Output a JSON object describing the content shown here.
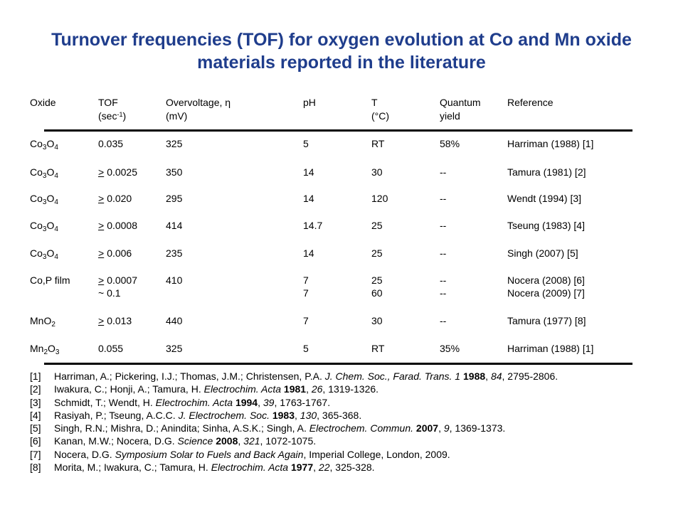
{
  "title": {
    "line1": "Turnover frequencies (TOF) for oxygen evolution at Co and Mn oxide",
    "line2": "materials reported in the literature"
  },
  "table": {
    "headers": {
      "oxide": "Oxide",
      "tof1": "TOF",
      "tof2_pre": "(sec",
      "tof2_sup": "-1",
      "tof2_post": ")",
      "over1": "Overvoltage, η",
      "over2": "(mV)",
      "ph": "pH",
      "t1": "T",
      "t2": "(°C)",
      "qy1": "Quantum",
      "qy2": "yield",
      "ref": "Reference"
    },
    "rows": [
      {
        "ox_a": "Co",
        "ox_s1": "3",
        "ox_b": "O",
        "ox_s2": "4",
        "ge": "",
        "tof": "0.035",
        "over": "325",
        "ph": "5",
        "t": "RT",
        "qy": "58%",
        "ref": "Harriman (1988) [1]"
      },
      {
        "ox_a": "Co",
        "ox_s1": "3",
        "ox_b": "O",
        "ox_s2": "4",
        "ge": ">",
        "tof": "0.0025",
        "over": "350",
        "ph": "14",
        "t": "30",
        "qy": "--",
        "ref": "Tamura (1981) [2]"
      },
      {
        "ox_a": "Co",
        "ox_s1": "3",
        "ox_b": "O",
        "ox_s2": "4",
        "ge": ">",
        "tof": "0.020",
        "over": "295",
        "ph": "14",
        "t": "120",
        "qy": "--",
        "ref": "Wendt (1994) [3]"
      },
      {
        "ox_a": "Co",
        "ox_s1": "3",
        "ox_b": "O",
        "ox_s2": "4",
        "ge": ">",
        "tof": "0.0008",
        "over": "414",
        "ph": "14.7",
        "t": "25",
        "qy": "--",
        "ref": "Tseung (1983) [4]"
      },
      {
        "ox_a": "Co",
        "ox_s1": "3",
        "ox_b": "O",
        "ox_s2": "4",
        "ge": ">",
        "tof": "0.006",
        "over": "235",
        "ph": "14",
        "t": "25",
        "qy": "--",
        "ref": "Singh (2007) [5]"
      },
      {
        "ox_a": "Co,P film",
        "ox_s1": "",
        "ox_b": "",
        "ox_s2": "",
        "ge": ">",
        "tof": "0.0007",
        "over": "410",
        "ph": "7",
        "t": "25",
        "qy": "--",
        "ref": "Nocera (2008) [6]"
      },
      {
        "ox_a": "",
        "ox_s1": "",
        "ox_b": "",
        "ox_s2": "",
        "ge": "",
        "tof": "~ 0.1",
        "over": "",
        "ph": "7",
        "t": "60",
        "qy": "--",
        "ref": "Nocera (2009) [7]"
      },
      {
        "ox_a": "MnO",
        "ox_s1": "2",
        "ox_b": "",
        "ox_s2": "",
        "ge": ">",
        "tof": "0.013",
        "over": "440",
        "ph": "7",
        "t": "30",
        "qy": "--",
        "ref": "Tamura (1977) [8]"
      },
      {
        "ox_a": "Mn",
        "ox_s1": "2",
        "ox_b": "O",
        "ox_s2": "3",
        "ge": "",
        "tof": "0.055",
        "over": "325",
        "ph": "5",
        "t": "RT",
        "qy": "35%",
        "ref": "Harriman (1988) [1]"
      }
    ]
  },
  "references": [
    {
      "num": "[1]",
      "p1": "Harriman, A.; Pickering, I.J.; Thomas, J.M.; Christensen, P.A. ",
      "journal": "J. Chem. Soc., Farad. Trans. 1",
      "p2": " ",
      "year": "1988",
      "p3": ", ",
      "vol": "84",
      "p4": ", 2795-2806."
    },
    {
      "num": "[2]",
      "p1": "Iwakura, C.; Honji, A.; Tamura, H. ",
      "journal": "Electrochim. Acta",
      "p2": " ",
      "year": "1981",
      "p3": ", ",
      "vol": "26",
      "p4": ", 1319-1326."
    },
    {
      "num": "[3]",
      "p1": "Schmidt, T.; Wendt, H. ",
      "journal": "Electrochim. Acta",
      "p2": " ",
      "year": "1994",
      "p3": ", ",
      "vol": "39",
      "p4": ", 1763-1767."
    },
    {
      "num": "[4]",
      "p1": "Rasiyah, P.; Tseung, A.C.C. ",
      "journal": "J. Electrochem. Soc.",
      "p2": " ",
      "year": "1983",
      "p3": ", ",
      "vol": "130",
      "p4": ", 365-368."
    },
    {
      "num": "[5]",
      "p1": "Singh, R.N.; Mishra, D.; Anindita; Sinha, A.S.K.; Singh, A. ",
      "journal": "Electrochem. Commun.",
      "p2": " ",
      "year": "2007",
      "p3": ", ",
      "vol": "9",
      "p4": ", 1369-1373."
    },
    {
      "num": "[6]",
      "p1": "Kanan, M.W.; Nocera, D.G. ",
      "journal": "Science",
      "p2": " ",
      "year": "2008",
      "p3": ", ",
      "vol": "321",
      "p4": ", 1072-1075."
    },
    {
      "num": "[7]",
      "p1": "Nocera, D.G. ",
      "journal": "Symposium Solar to Fuels and Back Again",
      "p2": ", Imperial College, London, 2009.",
      "year": "",
      "p3": "",
      "vol": "",
      "p4": ""
    },
    {
      "num": "[8]",
      "p1": "Morita, M.; Iwakura, C.; Tamura, H. ",
      "journal": "Electrochim. Acta",
      "p2": " ",
      "year": "1977",
      "p3": ", ",
      "vol": "22",
      "p4": ", 325-328."
    }
  ]
}
